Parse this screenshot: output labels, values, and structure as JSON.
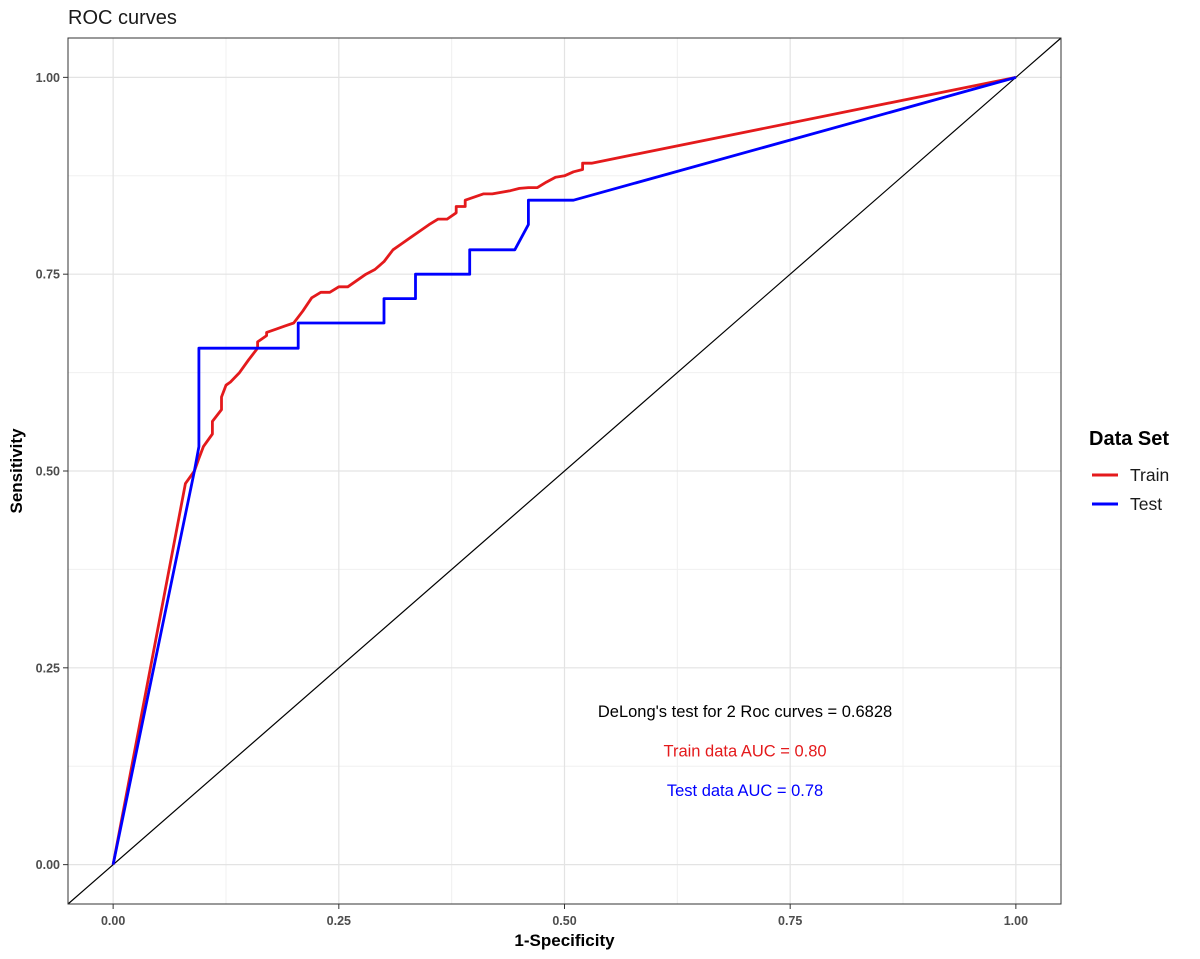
{
  "chart_data": {
    "type": "line",
    "title": "ROC curves",
    "xlabel": "1-Specificity",
    "ylabel": "Sensitivity",
    "xlim": [
      -0.05,
      1.05
    ],
    "ylim": [
      -0.05,
      1.05
    ],
    "x_ticks": [
      0,
      0.25,
      0.5,
      0.75,
      1
    ],
    "y_ticks": [
      0,
      0.25,
      0.5,
      0.75,
      1
    ],
    "x_tick_labels": [
      "0.00",
      "0.25",
      "0.50",
      "0.75",
      "1.00"
    ],
    "y_tick_labels": [
      "0.00",
      "0.25",
      "0.50",
      "0.75",
      "1.00"
    ],
    "grid": true,
    "legend": {
      "title": "Data Set",
      "position": "right",
      "entries": [
        {
          "label": "Train",
          "color": "#e41a1c"
        },
        {
          "label": "Test",
          "color": "#0000ff"
        }
      ]
    },
    "series": [
      {
        "name": "Train",
        "color": "#e41a1c",
        "x": [
          0,
          0.08,
          0.09,
          0.095,
          0.1,
          0.11,
          0.11,
          0.12,
          0.12,
          0.125,
          0.13,
          0.14,
          0.15,
          0.16,
          0.16,
          0.17,
          0.17,
          0.18,
          0.19,
          0.2,
          0.21,
          0.22,
          0.23,
          0.24,
          0.25,
          0.26,
          0.28,
          0.29,
          0.3,
          0.31,
          0.32,
          0.33,
          0.34,
          0.35,
          0.36,
          0.37,
          0.38,
          0.38,
          0.39,
          0.39,
          0.41,
          0.42,
          0.44,
          0.45,
          0.46,
          0.47,
          0.48,
          0.49,
          0.5,
          0.51,
          0.52,
          0.52,
          0.53,
          1.0
        ],
        "y": [
          0,
          0.484,
          0.5,
          0.516,
          0.531,
          0.547,
          0.563,
          0.578,
          0.594,
          0.609,
          0.613,
          0.625,
          0.641,
          0.656,
          0.664,
          0.672,
          0.676,
          0.68,
          0.684,
          0.688,
          0.703,
          0.72,
          0.727,
          0.727,
          0.734,
          0.734,
          0.75,
          0.756,
          0.766,
          0.781,
          0.789,
          0.797,
          0.805,
          0.813,
          0.82,
          0.82,
          0.828,
          0.836,
          0.836,
          0.844,
          0.852,
          0.852,
          0.856,
          0.859,
          0.86,
          0.86,
          0.867,
          0.873,
          0.875,
          0.88,
          0.883,
          0.891,
          0.891,
          1.0
        ]
      },
      {
        "name": "Test",
        "color": "#0000ff",
        "x": [
          0,
          0.09,
          0.095,
          0.095,
          0.205,
          0.205,
          0.3,
          0.3,
          0.335,
          0.335,
          0.395,
          0.395,
          0.445,
          0.46,
          0.46,
          0.51,
          1.0
        ],
        "y": [
          0,
          0.5,
          0.531,
          0.656,
          0.656,
          0.688,
          0.688,
          0.719,
          0.719,
          0.75,
          0.75,
          0.781,
          0.781,
          0.813,
          0.844,
          0.844,
          1.0
        ]
      }
    ],
    "reference_line": {
      "x": [
        -0.05,
        1.05
      ],
      "y": [
        -0.05,
        1.05
      ],
      "color": "#000000"
    },
    "annotations": [
      {
        "text": "DeLong's test for 2 Roc curves = 0.6828",
        "x": 0.7,
        "y": 0.195,
        "color": "#000000"
      },
      {
        "text": "Train data AUC = 0.80",
        "x": 0.7,
        "y": 0.145,
        "color": "#e41a1c"
      },
      {
        "text": "Test data AUC = 0.78",
        "x": 0.7,
        "y": 0.095,
        "color": "#0000ff"
      }
    ]
  }
}
